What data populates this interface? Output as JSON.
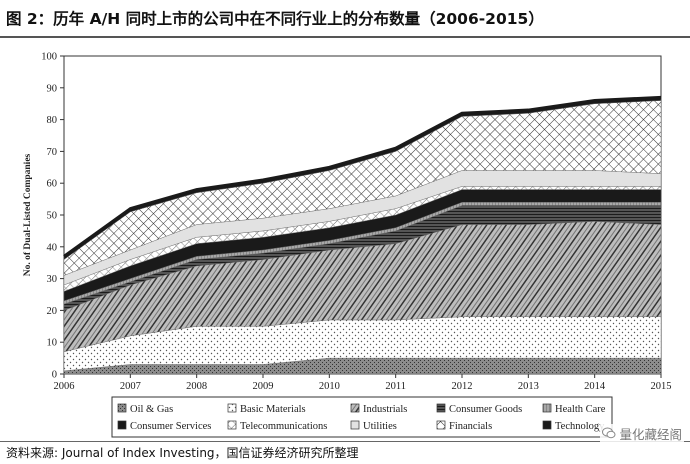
{
  "header": {
    "title": "图 2：历年 A/H 同时上市的公司中在不同行业上的分布数量（2006-2015）"
  },
  "footer": {
    "source": "资料来源: Journal of Index Investing，国信证券经济研究所整理",
    "watermark": "量化藏经阁"
  },
  "chart_data": {
    "type": "area",
    "stacked": true,
    "x": [
      "2006",
      "2007",
      "2008",
      "2009",
      "2010",
      "2011",
      "2012",
      "2013",
      "2014",
      "2015"
    ],
    "ylabel": "No. of Dual-Listed Companies",
    "xlabel": "",
    "ylim": [
      0,
      100
    ],
    "yticks": [
      "0",
      "10",
      "20",
      "30",
      "40",
      "50",
      "60",
      "70",
      "80",
      "90",
      "100"
    ],
    "legend_position": "bottom",
    "series": [
      {
        "name": "Oil & Gas",
        "values": [
          1,
          3,
          3,
          3,
          5,
          5,
          5,
          5,
          5,
          5
        ]
      },
      {
        "name": "Basic Materials",
        "values": [
          6,
          9,
          12,
          12,
          12,
          12,
          13,
          13,
          13,
          13
        ]
      },
      {
        "name": "Industrials",
        "values": [
          13,
          16,
          19,
          21,
          22,
          24,
          29,
          29,
          30,
          29
        ]
      },
      {
        "name": "Consumer Goods",
        "values": [
          2,
          1,
          2,
          2,
          2,
          4,
          6,
          6,
          5,
          6
        ]
      },
      {
        "name": "Health Care",
        "values": [
          1,
          1,
          1,
          1,
          1,
          1,
          1,
          1,
          1,
          1
        ]
      },
      {
        "name": "Consumer Services",
        "values": [
          3,
          4,
          4,
          4,
          4,
          4,
          4,
          4,
          4,
          4
        ]
      },
      {
        "name": "Telecommunications",
        "values": [
          2,
          2,
          2,
          2,
          2,
          2,
          1,
          1,
          1,
          1
        ]
      },
      {
        "name": "Utilities",
        "values": [
          3,
          3,
          4,
          4,
          4,
          4,
          5,
          5,
          5,
          4
        ]
      },
      {
        "name": "Financials",
        "values": [
          5,
          12,
          10,
          11,
          12,
          14,
          17,
          18,
          21,
          23
        ]
      },
      {
        "name": "Technology",
        "values": [
          1,
          1,
          1,
          1,
          1,
          1,
          1,
          1,
          1,
          1
        ]
      }
    ]
  },
  "colors": {
    "frame": "#333333",
    "dark": "#1a1a1a",
    "mid": "#777777",
    "light": "#cccccc"
  }
}
